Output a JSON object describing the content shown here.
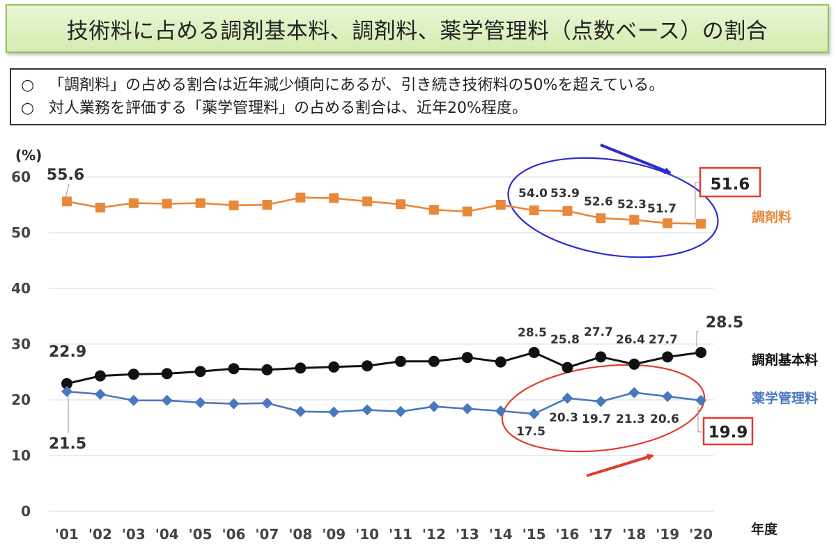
{
  "title": "技術料に占める調剤基本料、調剤料、薬学管理料（点数ベース）の割合",
  "summary": [
    {
      "mark": "○",
      "text": "「調剤料」の占める割合は近年減少傾向にあるが、引き続き技術料の50%を超えている。"
    },
    {
      "mark": "○",
      "text": "対人業務を評価する「薬学管理料」の占める割合は、近年20%程度。"
    }
  ],
  "colors": {
    "chozai": "#e8883a",
    "kihon": "#111111",
    "yakugaku": "#4a78bd",
    "highlight_box": "#e23b2e",
    "ellipse_top": "#2b2bd0",
    "ellipse_bottom": "#e23b2e",
    "grid": "#d9d9d9"
  },
  "chart_data": {
    "type": "line",
    "y_unit_label": "(%)",
    "x_axis_title": "年度",
    "ylim": [
      0,
      60
    ],
    "y_ticks": [
      0,
      10,
      20,
      30,
      40,
      50,
      60
    ],
    "x": [
      "'01",
      "'02",
      "'03",
      "'04",
      "'05",
      "'06",
      "'07",
      "'08",
      "'09",
      "'10",
      "'11",
      "'12",
      "'13",
      "'14",
      "'15",
      "'16",
      "'17",
      "'18",
      "'19",
      "'20"
    ],
    "grid": true,
    "series": [
      {
        "key": "chozai",
        "name": "調剤料",
        "marker": "square",
        "values": [
          55.6,
          54.5,
          55.3,
          55.2,
          55.3,
          54.9,
          55.0,
          56.3,
          56.2,
          55.6,
          55.1,
          54.1,
          53.8,
          55.0,
          54.0,
          53.9,
          52.6,
          52.3,
          51.7,
          51.6
        ],
        "labels": [
          {
            "i": 0,
            "text": "55.6"
          },
          {
            "i": 14,
            "text": "54.0"
          },
          {
            "i": 15,
            "text": "53.9"
          },
          {
            "i": 16,
            "text": "52.6"
          },
          {
            "i": 17,
            "text": "52.3"
          },
          {
            "i": 18,
            "text": "51.7"
          },
          {
            "i": 19,
            "text": "51.6",
            "boxed": true
          }
        ]
      },
      {
        "key": "kihon",
        "name": "調剤基本料",
        "marker": "circle",
        "values": [
          22.9,
          24.3,
          24.6,
          24.7,
          25.1,
          25.6,
          25.4,
          25.7,
          25.9,
          26.1,
          26.9,
          26.9,
          27.6,
          26.8,
          28.5,
          25.8,
          27.7,
          26.4,
          27.7,
          28.5
        ],
        "labels": [
          {
            "i": 0,
            "text": "22.9"
          },
          {
            "i": 14,
            "text": "28.5"
          },
          {
            "i": 15,
            "text": "25.8"
          },
          {
            "i": 16,
            "text": "27.7"
          },
          {
            "i": 17,
            "text": "26.4"
          },
          {
            "i": 18,
            "text": "27.7"
          },
          {
            "i": 19,
            "text": "28.5"
          }
        ]
      },
      {
        "key": "yakugaku",
        "name": "薬学管理料",
        "marker": "diamond",
        "values": [
          21.5,
          21.0,
          19.9,
          19.9,
          19.5,
          19.3,
          19.4,
          17.9,
          17.8,
          18.2,
          17.9,
          18.8,
          18.4,
          18.0,
          17.5,
          20.3,
          19.7,
          21.3,
          20.6,
          19.9
        ],
        "labels": [
          {
            "i": 0,
            "text": "21.5"
          },
          {
            "i": 14,
            "text": "17.5"
          },
          {
            "i": 15,
            "text": "20.3"
          },
          {
            "i": 16,
            "text": "19.7"
          },
          {
            "i": 17,
            "text": "21.3"
          },
          {
            "i": 18,
            "text": "20.6"
          },
          {
            "i": 19,
            "text": "19.9",
            "boxed": true
          }
        ]
      }
    ]
  }
}
